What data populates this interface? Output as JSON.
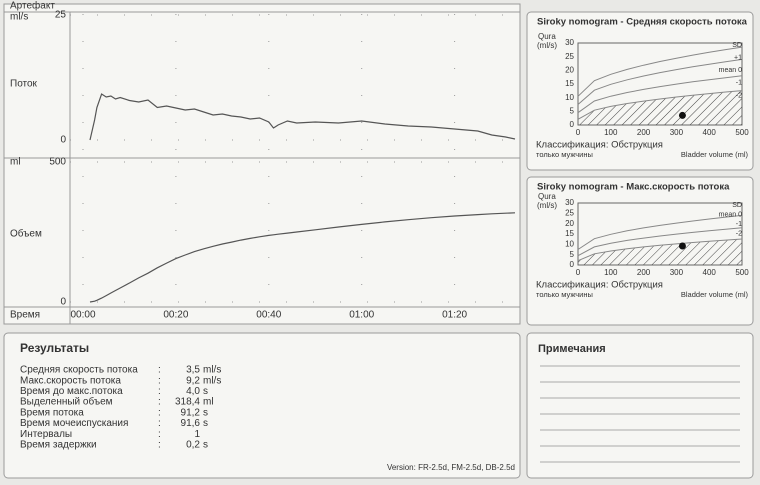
{
  "header": {
    "artifact_label": "Артефакт"
  },
  "time_axis": {
    "label": "Время",
    "xlim": [
      0,
      93
    ],
    "xticks": [
      {
        "value": 0,
        "label": "00:00"
      },
      {
        "value": 20,
        "label": "00:20"
      },
      {
        "value": 40,
        "label": "00:40"
      },
      {
        "value": 60,
        "label": "01:00"
      },
      {
        "value": 80,
        "label": "01:20"
      }
    ],
    "x": [
      1.5,
      2.5,
      3,
      4,
      5,
      6,
      7,
      8,
      10,
      12,
      14,
      16,
      18,
      20,
      22,
      24,
      26,
      28,
      30,
      32,
      34,
      36,
      38,
      40,
      41,
      42,
      44,
      46,
      50,
      55,
      60,
      65,
      70,
      75,
      80,
      85,
      88,
      91,
      93
    ]
  },
  "flow_chart": {
    "type": "line",
    "y_label": "Поток",
    "y_unit": "ml/s",
    "ylim": [
      0,
      25
    ],
    "yticks": [
      0,
      25
    ],
    "color": "#555555",
    "values": [
      0,
      4,
      6.5,
      9.2,
      8.6,
      8.8,
      8.2,
      8.5,
      7.9,
      7.6,
      8.0,
      6.5,
      6.8,
      6.4,
      6.0,
      6.2,
      5.6,
      5.0,
      5.2,
      4.8,
      4.6,
      4.2,
      4.4,
      3.6,
      2.4,
      3.0,
      3.8,
      3.4,
      3.6,
      3.4,
      3.8,
      3.2,
      2.8,
      2.6,
      2.2,
      1.8,
      1.0,
      0.6,
      0.2
    ]
  },
  "volume_chart": {
    "type": "line",
    "y_label": "Объем",
    "y_unit": "ml",
    "ylim": [
      0,
      500
    ],
    "yticks": [
      0,
      500
    ],
    "color": "#555555",
    "values": [
      0,
      3,
      6,
      14,
      23,
      32,
      41,
      50,
      68,
      86,
      103,
      122,
      139,
      155,
      168,
      180,
      190,
      199,
      207,
      214,
      221,
      227,
      233,
      238,
      240,
      242,
      246,
      250,
      258,
      268,
      277,
      286,
      294,
      301,
      307,
      312,
      315,
      317,
      318.4
    ]
  },
  "nomograms": [
    {
      "title": "Siroky nomogram - Средняя скорость потока",
      "y_label": "Qura",
      "y_unit": "(ml/s)",
      "ylim": [
        0,
        30
      ],
      "yticks": [
        0,
        5,
        10,
        15,
        20,
        25,
        30
      ],
      "xlim": [
        0,
        500
      ],
      "xticks": [
        0,
        100,
        200,
        300,
        400,
        500
      ],
      "x_label": "Bladder volume (ml)",
      "curve_labels": [
        "SD",
        "+1",
        "mean 0",
        "-1",
        "-2"
      ],
      "point": {
        "x": 318.4,
        "y": 3.5
      },
      "classification": "Классификация: Обструкция",
      "note": "только мужчины"
    },
    {
      "title": "Siroky nomogram - Макс.скорость потока",
      "y_label": "Qura",
      "y_unit": "(ml/s)",
      "ylim": [
        0,
        30
      ],
      "yticks": [
        0,
        5,
        10,
        15,
        20,
        25,
        30
      ],
      "xlim": [
        0,
        500
      ],
      "xticks": [
        0,
        100,
        200,
        300,
        400,
        500
      ],
      "x_label": "Bladder volume (ml)",
      "curve_labels": [
        "SD",
        "mean 0",
        "-1",
        "-2"
      ],
      "point": {
        "x": 318.4,
        "y": 9.2
      },
      "classification": "Классификация: Обструкция",
      "note": "только мужчины"
    }
  ],
  "results": {
    "title": "Результаты",
    "rows": [
      [
        "Средняя скорость потока",
        ":",
        "3,5",
        "ml/s"
      ],
      [
        "Макс.скорость потока",
        ":",
        "9,2",
        "ml/s"
      ],
      [
        "Время до макс.потока",
        ":",
        "4,0",
        "s"
      ],
      [
        "Выделенный объем",
        ":",
        "318,4",
        "ml"
      ],
      [
        "Время потока",
        ":",
        "91,2",
        "s"
      ],
      [
        "Время мочеиспускания",
        ":",
        "91,6",
        "s"
      ],
      [
        "Интервалы",
        ":",
        "1"
      ],
      [
        "Время задержки",
        ":",
        "0,2",
        "s"
      ]
    ],
    "version": "Version: FR-2.5d, FM-2.5d, DB-2.5d"
  },
  "notes": {
    "title": "Примечания"
  }
}
